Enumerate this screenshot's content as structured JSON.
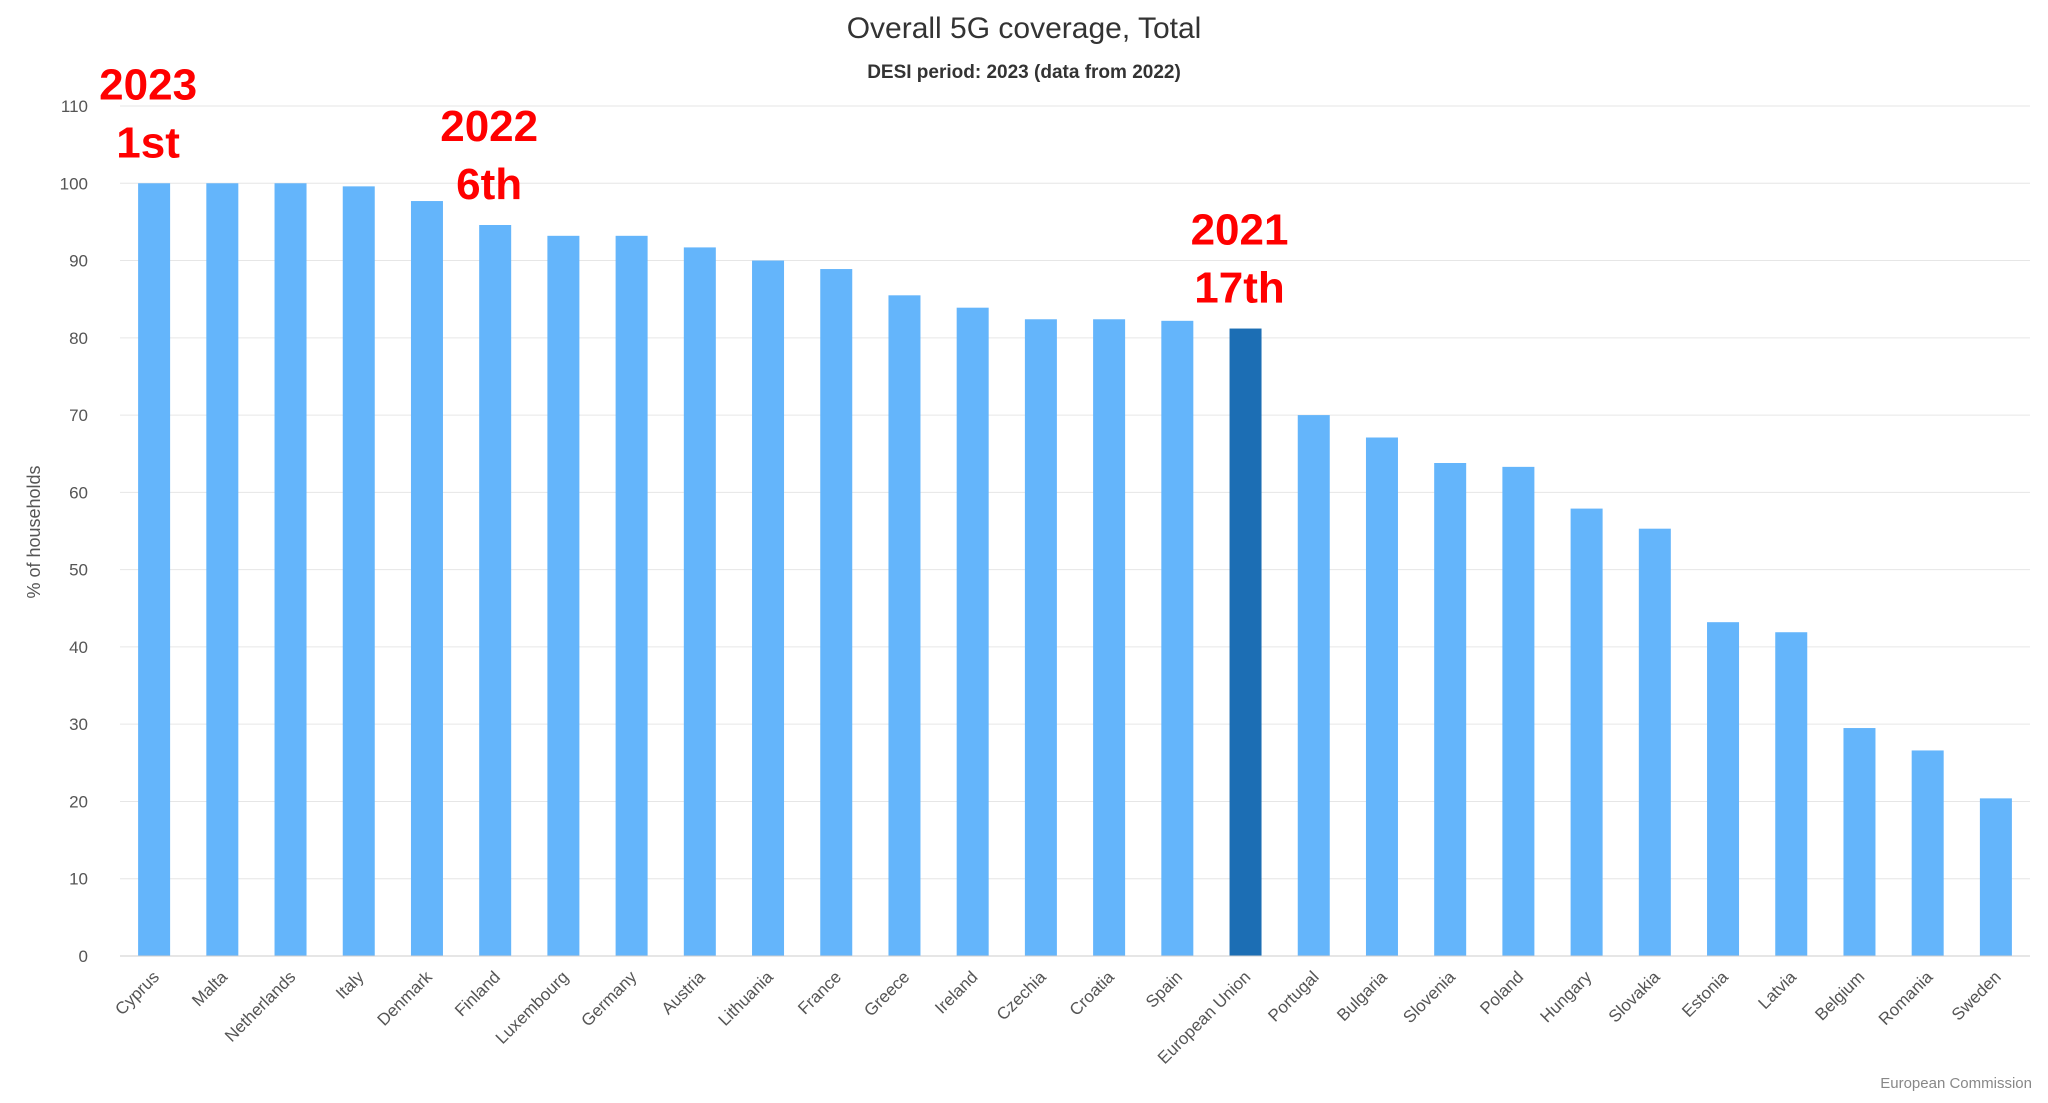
{
  "chart_data": {
    "type": "bar",
    "title": "Overall 5G coverage, Total",
    "subtitle": "DESI period: 2023 (data from 2022)",
    "xlabel": "",
    "ylabel": "% of households",
    "ylim": [
      0,
      110
    ],
    "yticks": [
      0,
      10,
      20,
      30,
      40,
      50,
      60,
      70,
      80,
      90,
      100,
      110
    ],
    "grid": true,
    "categories": [
      "Cyprus",
      "Malta",
      "Netherlands",
      "Italy",
      "Denmark",
      "Finland",
      "Luxembourg",
      "Germany",
      "Austria",
      "Lithuania",
      "France",
      "Greece",
      "Ireland",
      "Czechia",
      "Croatia",
      "Spain",
      "European Union",
      "Portugal",
      "Bulgaria",
      "Slovenia",
      "Poland",
      "Hungary",
      "Slovakia",
      "Estonia",
      "Latvia",
      "Belgium",
      "Romania",
      "Sweden"
    ],
    "values": [
      100,
      100,
      100,
      99.6,
      97.7,
      94.6,
      93.2,
      93.2,
      91.7,
      90.0,
      88.9,
      85.5,
      83.9,
      82.4,
      82.4,
      82.2,
      81.2,
      70.0,
      67.1,
      63.8,
      63.3,
      57.9,
      55.3,
      43.2,
      41.9,
      29.5,
      26.6,
      20.4
    ],
    "bar_color": "#64b5fb",
    "highlight_category": "European Union",
    "highlight_color": "#1c6eb4",
    "annotations": [
      {
        "category": "Cyprus",
        "lines": [
          "2023",
          "1st"
        ]
      },
      {
        "category": "Finland",
        "lines": [
          "2022",
          "6th"
        ]
      },
      {
        "category": "European Union",
        "lines": [
          "2021",
          "17th"
        ]
      }
    ],
    "annotation_color": "#ff0000",
    "credit": "European Commission"
  }
}
